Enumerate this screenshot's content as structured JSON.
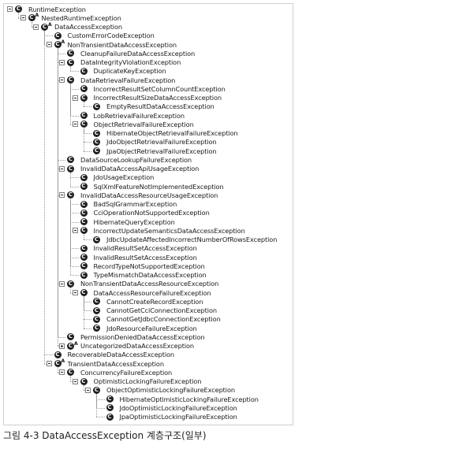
{
  "tree": {
    "nodes": [
      {
        "label": "RuntimeException",
        "level": 0,
        "toggle": "minus",
        "abstract": false
      },
      {
        "label": "NestedRuntimeException",
        "level": 1,
        "toggle": "minus",
        "abstract": true
      },
      {
        "label": "DataAccessException",
        "level": 2,
        "toggle": "minus",
        "abstract": true
      },
      {
        "label": "CustomErrorCodeException",
        "level": 3,
        "toggle": "none",
        "abstract": false
      },
      {
        "label": "NonTransientDataAccessException",
        "level": 3,
        "toggle": "minus",
        "abstract": true
      },
      {
        "label": "CleanupFailureDataAccessException",
        "level": 4,
        "toggle": "none",
        "abstract": false
      },
      {
        "label": "DataIntegrityViolationException",
        "level": 4,
        "toggle": "minus",
        "abstract": false
      },
      {
        "label": "DuplicateKeyException",
        "level": 5,
        "toggle": "none",
        "abstract": false
      },
      {
        "label": "DataRetrievalFailureException",
        "level": 4,
        "toggle": "minus",
        "abstract": false
      },
      {
        "label": "IncorrectResultSetColumnCountException",
        "level": 5,
        "toggle": "none",
        "abstract": false
      },
      {
        "label": "IncorrectResultSizeDataAccessException",
        "level": 5,
        "toggle": "minus",
        "abstract": false
      },
      {
        "label": "EmptyResultDataAccessException",
        "level": 6,
        "toggle": "none",
        "abstract": false
      },
      {
        "label": "LobRetrievalFailureException",
        "level": 5,
        "toggle": "none",
        "abstract": false
      },
      {
        "label": "ObjectRetrievalFailureException",
        "level": 5,
        "toggle": "minus",
        "abstract": false
      },
      {
        "label": "HibernateObjectRetrievalFailureException",
        "level": 6,
        "toggle": "none",
        "abstract": false
      },
      {
        "label": "JdoObjectRetrievalFailureException",
        "level": 6,
        "toggle": "none",
        "abstract": false
      },
      {
        "label": "JpaObjectRetrievalFailureException",
        "level": 6,
        "toggle": "none",
        "abstract": false
      },
      {
        "label": "DataSourceLookupFailureException",
        "level": 4,
        "toggle": "none",
        "abstract": false
      },
      {
        "label": "InvalidDataAccessApiUsageException",
        "level": 4,
        "toggle": "minus",
        "abstract": false
      },
      {
        "label": "JdoUsageException",
        "level": 5,
        "toggle": "none",
        "abstract": false
      },
      {
        "label": "SqlXmlFeatureNotImplementedException",
        "level": 5,
        "toggle": "none",
        "abstract": false
      },
      {
        "label": "InvalidDataAccessResourceUsageException",
        "level": 4,
        "toggle": "minus",
        "abstract": false
      },
      {
        "label": "BadSqlGrammarException",
        "level": 5,
        "toggle": "none",
        "abstract": false
      },
      {
        "label": "CciOperationNotSupportedException",
        "level": 5,
        "toggle": "none",
        "abstract": false
      },
      {
        "label": "HibernateQueryException",
        "level": 5,
        "toggle": "none",
        "abstract": false
      },
      {
        "label": "IncorrectUpdateSemanticsDataAccessException",
        "level": 5,
        "toggle": "minus",
        "abstract": false
      },
      {
        "label": "JdbcUpdateAffectedIncorrectNumberOfRowsException",
        "level": 6,
        "toggle": "none",
        "abstract": false
      },
      {
        "label": "InvalidResultSetAccessException",
        "level": 5,
        "toggle": "none",
        "abstract": false
      },
      {
        "label": "InvalidResultSetAccessException",
        "level": 5,
        "toggle": "none",
        "abstract": false
      },
      {
        "label": "RecordTypeNotSupportedException",
        "level": 5,
        "toggle": "none",
        "abstract": false
      },
      {
        "label": "TypeMismatchDataAccessException",
        "level": 5,
        "toggle": "none",
        "abstract": false
      },
      {
        "label": "NonTransientDataAccessResourceException",
        "level": 4,
        "toggle": "minus",
        "abstract": false
      },
      {
        "label": "DataAccessResourceFailureException",
        "level": 5,
        "toggle": "minus",
        "abstract": false
      },
      {
        "label": "CannotCreateRecordException",
        "level": 6,
        "toggle": "none",
        "abstract": false
      },
      {
        "label": "CannotGetCciConnectionException",
        "level": 6,
        "toggle": "none",
        "abstract": false
      },
      {
        "label": "CannotGetJdbcConnectionException",
        "level": 6,
        "toggle": "none",
        "abstract": false
      },
      {
        "label": "JdoResourceFailureException",
        "level": 6,
        "toggle": "none",
        "abstract": false
      },
      {
        "label": "PermissionDeniedDataAccessException",
        "level": 4,
        "toggle": "none",
        "abstract": false
      },
      {
        "label": "UncategorizedDataAccessException",
        "level": 4,
        "toggle": "plus",
        "abstract": true
      },
      {
        "label": "RecoverableDataAccessException",
        "level": 3,
        "toggle": "none",
        "abstract": false
      },
      {
        "label": "TransientDataAccessException",
        "level": 3,
        "toggle": "minus",
        "abstract": true
      },
      {
        "label": "ConcurrencyFailureException",
        "level": 4,
        "toggle": "minus",
        "abstract": false
      },
      {
        "label": "OptimisticLockingFailureException",
        "level": 5,
        "toggle": "minus",
        "abstract": false
      },
      {
        "label": "ObjectOptimisticLockingFailureException",
        "level": 6,
        "toggle": "minus",
        "abstract": false
      },
      {
        "label": "HibernateOptimisticLockingFailureException",
        "level": 7,
        "toggle": "none",
        "abstract": false
      },
      {
        "label": "JdoOptimisticLockingFailureException",
        "level": 7,
        "toggle": "none",
        "abstract": false
      },
      {
        "label": "JpaOptimisticLockingFailureException",
        "level": 7,
        "toggle": "none",
        "abstract": false
      }
    ],
    "class_icon_letter": "C",
    "abstract_marker": "A"
  },
  "caption": "그림 4-3 DataAccessException 계층구조(일부)"
}
